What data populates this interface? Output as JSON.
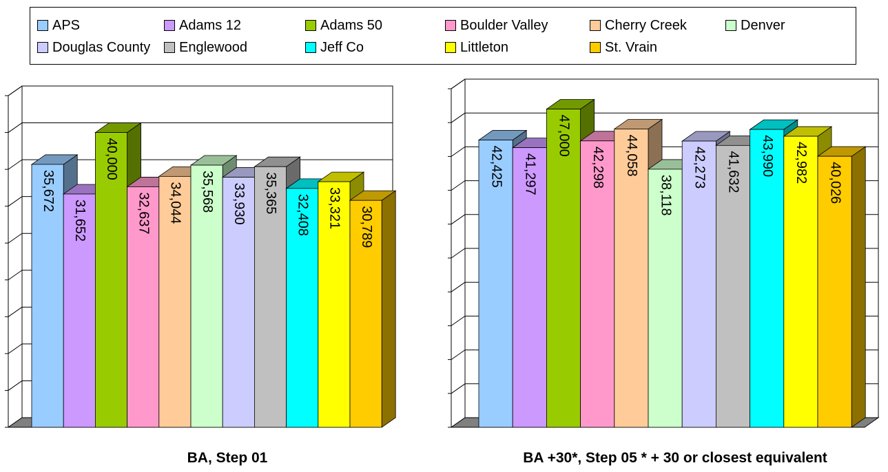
{
  "legend": [
    {
      "name": "APS",
      "color": "#99ccff"
    },
    {
      "name": "Adams 12",
      "color": "#cc99ff"
    },
    {
      "name": "Adams 50",
      "color": "#99cc00"
    },
    {
      "name": "Boulder Valley",
      "color": "#ff99cc"
    },
    {
      "name": "Cherry Creek",
      "color": "#ffcc99"
    },
    {
      "name": "Denver",
      "color": "#ccffcc"
    },
    {
      "name": "Douglas County",
      "color": "#ccccff"
    },
    {
      "name": "Englewood",
      "color": "#c0c0c0"
    },
    {
      "name": "Jeff Co",
      "color": "#00ffff"
    },
    {
      "name": "Littleton",
      "color": "#ffff00"
    },
    {
      "name": "St. Vrain",
      "color": "#ffcc00"
    }
  ],
  "captions": {
    "left": "BA, Step 01",
    "right": "BA +30*, Step 05 * + 30 or closest equivalent"
  },
  "chart_data": [
    {
      "type": "bar",
      "title": "BA, Step 01",
      "categories": [
        "APS",
        "Adams 12",
        "Adams 50",
        "Boulder Valley",
        "Cherry Creek",
        "Denver",
        "Douglas County",
        "Englewood",
        "Jeff Co",
        "Littleton",
        "St. Vrain"
      ],
      "values": [
        35672,
        31652,
        40000,
        32637,
        34044,
        35568,
        33930,
        35365,
        32408,
        33321,
        30789
      ],
      "value_labels": [
        "35,672",
        "31,652",
        "40,000",
        "32,637",
        "34,044",
        "35,568",
        "33,930",
        "35,365",
        "32,408",
        "33,321",
        "30,789"
      ],
      "ylim": [
        0,
        45000
      ],
      "gridlines": true,
      "legend_position": "top"
    },
    {
      "type": "bar",
      "title": "BA +30*, Step 05 * + 30 or closest equivalent",
      "categories": [
        "APS",
        "Adams 12",
        "Adams 50",
        "Boulder Valley",
        "Cherry Creek",
        "Denver",
        "Douglas County",
        "Englewood",
        "Jeff Co",
        "Littleton",
        "St. Vrain"
      ],
      "values": [
        42425,
        41297,
        47000,
        42298,
        44058,
        38118,
        42273,
        41632,
        43990,
        42982,
        40026
      ],
      "value_labels": [
        "42,425",
        "41,297",
        "47,000",
        "42,298",
        "44,058",
        "38,118",
        "42,273",
        "41,632",
        "43,990",
        "42,982",
        "40,026"
      ],
      "ylim": [
        0,
        50000
      ],
      "gridlines": true,
      "legend_position": "top"
    }
  ]
}
